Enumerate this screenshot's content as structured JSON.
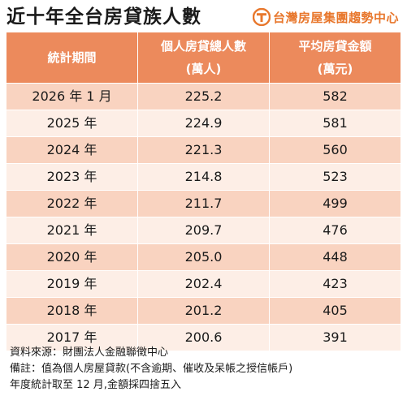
{
  "title": "近十年全台房貸族人數",
  "brand": {
    "logo_icon": "triangle-t-logo-icon",
    "text": "台灣房屋集團趨勢中心",
    "color": "#e8772c"
  },
  "table": {
    "header_color": "#ec8a5c",
    "columns": [
      {
        "label": "統計期間",
        "sub": ""
      },
      {
        "label": "個人房貸總人數",
        "sub": "(萬人)"
      },
      {
        "label": "平均房貸金額",
        "sub": "(萬元)"
      }
    ],
    "rows": [
      {
        "period": "2026 年 1 月",
        "borrowers": "225.2",
        "avg_loan": "582"
      },
      {
        "period": "2025 年",
        "borrowers": "224.9",
        "avg_loan": "581"
      },
      {
        "period": "2024 年",
        "borrowers": "221.3",
        "avg_loan": "560"
      },
      {
        "period": "2023 年",
        "borrowers": "214.8",
        "avg_loan": "523"
      },
      {
        "period": "2022 年",
        "borrowers": "211.7",
        "avg_loan": "499"
      },
      {
        "period": "2021 年",
        "borrowers": "209.7",
        "avg_loan": "476"
      },
      {
        "period": "2020 年",
        "borrowers": "205.0",
        "avg_loan": "448"
      },
      {
        "period": "2019 年",
        "borrowers": "202.4",
        "avg_loan": "423"
      },
      {
        "period": "2018 年",
        "borrowers": "201.2",
        "avg_loan": "405"
      },
      {
        "period": "2017 年",
        "borrowers": "200.6",
        "avg_loan": "391"
      }
    ]
  },
  "notes": [
    "資料來源：財團法人金融聯徵中心",
    "備註：值為個人房屋貸款(不含逾期、催收及呆帳之授信帳戶)",
    "年度統計取至 12 月,金額採四捨五入"
  ]
}
